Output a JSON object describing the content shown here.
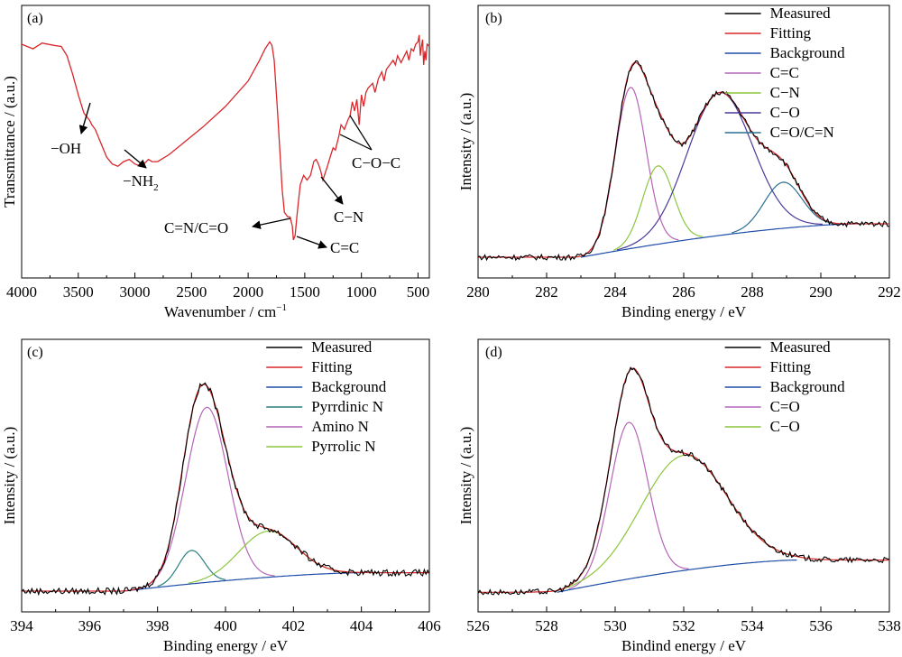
{
  "chart_data": [
    {
      "panel": "(a)",
      "type": "line",
      "xlabel": "Wavenumber / cm",
      "xlabel_sup": "−1",
      "ylabel": "Transmittance / (a.u.)",
      "xlim": [
        4000,
        400
      ],
      "xticks": [
        4000,
        3500,
        3000,
        2500,
        2000,
        1500,
        1000,
        500
      ],
      "ylim": [
        0,
        1
      ],
      "series": [
        {
          "color": "#d9262b",
          "x": [
            4000,
            3900,
            3820,
            3720,
            3650,
            3600,
            3550,
            3500,
            3450,
            3400,
            3380,
            3350,
            3300,
            3250,
            3200,
            3150,
            3100,
            3050,
            3000,
            2950,
            2920,
            2880,
            2850,
            2800,
            2700,
            2600,
            2400,
            2200,
            2000,
            1900,
            1850,
            1810,
            1790,
            1770,
            1740,
            1700,
            1680,
            1650,
            1630,
            1610,
            1600,
            1585,
            1570,
            1560,
            1540,
            1510,
            1480,
            1450,
            1420,
            1400,
            1380,
            1360,
            1340,
            1300,
            1270,
            1250,
            1230,
            1200,
            1180,
            1150,
            1120,
            1100,
            1080,
            1060,
            1040,
            1020,
            1000,
            980,
            960,
            940,
            900,
            880,
            850,
            820,
            800,
            780,
            750,
            720,
            700,
            680,
            650,
            620,
            600,
            580,
            560,
            540,
            520,
            500,
            490,
            480,
            470,
            460,
            450,
            440,
            430,
            420,
            400
          ],
          "y": [
            0.95,
            0.93,
            0.955,
            0.945,
            0.94,
            0.9,
            0.82,
            0.73,
            0.65,
            0.62,
            0.6,
            0.58,
            0.52,
            0.46,
            0.43,
            0.42,
            0.44,
            0.45,
            0.43,
            0.42,
            0.43,
            0.45,
            0.44,
            0.44,
            0.47,
            0.51,
            0.59,
            0.68,
            0.79,
            0.88,
            0.93,
            0.96,
            0.945,
            0.88,
            0.65,
            0.32,
            0.22,
            0.2,
            0.2,
            0.16,
            0.1,
            0.12,
            0.2,
            0.25,
            0.34,
            0.38,
            0.36,
            0.38,
            0.44,
            0.45,
            0.43,
            0.4,
            0.36,
            0.42,
            0.47,
            0.5,
            0.49,
            0.55,
            0.6,
            0.58,
            0.62,
            0.64,
            0.7,
            0.66,
            0.71,
            0.6,
            0.73,
            0.68,
            0.74,
            0.76,
            0.78,
            0.74,
            0.8,
            0.83,
            0.79,
            0.84,
            0.86,
            0.88,
            0.86,
            0.9,
            0.87,
            0.9,
            0.92,
            0.88,
            0.93,
            0.92,
            0.95,
            0.96,
            0.99,
            0.9,
            0.94,
            0.97,
            0.86,
            0.92,
            0.88,
            0.95,
            0.94
          ]
        }
      ],
      "annotations": [
        {
          "text": "−OH"
        },
        {
          "text": "−NH",
          "sub": "2"
        },
        {
          "text": "C=N/C=O"
        },
        {
          "text": "C=C"
        },
        {
          "text": "C−N"
        },
        {
          "text": "C−O−C"
        }
      ]
    },
    {
      "panel": "(b)",
      "type": "line",
      "xlabel": "Binding energy / eV",
      "ylabel": "Intensity / (a.u.)",
      "xlim": [
        280,
        292
      ],
      "xticks": [
        280,
        282,
        284,
        286,
        288,
        290,
        292
      ],
      "ylim": [
        0,
        1
      ],
      "legend_position": "top-right",
      "background": {
        "x0": 283.0,
        "y0": 0.025,
        "x1": 291.0,
        "y1": 0.17,
        "curv": 0.5
      },
      "series": [
        {
          "name": "Measured",
          "color": "#000000",
          "kind": "measured",
          "noise": 0.012
        },
        {
          "name": "Fitting",
          "color": "#d9262b",
          "kind": "fitting"
        },
        {
          "name": "Background",
          "color": "#1f4ea8",
          "kind": "background"
        },
        {
          "name": "C=C",
          "color": "#b565b8",
          "kind": "peak",
          "center": 284.45,
          "height": 0.7,
          "width": 0.45
        },
        {
          "name": "C−N",
          "color": "#8cc63f",
          "kind": "peak",
          "center": 285.25,
          "height": 0.34,
          "width": 0.45
        },
        {
          "name": "C−O",
          "color": "#4b3a9a",
          "kind": "peak",
          "center": 287.05,
          "height": 0.62,
          "width": 0.95
        },
        {
          "name": "C=O/C=N",
          "color": "#2b6f8f",
          "kind": "peak",
          "center": 288.9,
          "height": 0.2,
          "width": 0.55
        }
      ]
    },
    {
      "panel": "(c)",
      "type": "line",
      "xlabel": "Binding energy / eV",
      "ylabel": "Intensity / (a.u.)",
      "xlim": [
        394,
        406
      ],
      "xticks": [
        394,
        396,
        398,
        400,
        402,
        404,
        406
      ],
      "ylim": [
        0,
        1
      ],
      "legend_position": "top-right",
      "background": {
        "x0": 397.0,
        "y0": 0.025,
        "x1": 404.0,
        "y1": 0.105,
        "curv": 0.5
      },
      "series": [
        {
          "name": "Measured",
          "color": "#000000",
          "kind": "measured",
          "noise": 0.014
        },
        {
          "name": "Fitting",
          "color": "#d9262b",
          "kind": "fitting"
        },
        {
          "name": "Background",
          "color": "#1f4ea8",
          "kind": "background"
        },
        {
          "name": "Pyrrdinic N",
          "color": "#2b7f7f",
          "kind": "peak",
          "center": 399.0,
          "height": 0.145,
          "width": 0.38
        },
        {
          "name": "Amino N",
          "color": "#b565b8",
          "kind": "peak",
          "center": 399.45,
          "height": 0.76,
          "width": 0.62
        },
        {
          "name": "Pyrrolic N",
          "color": "#8cc63f",
          "kind": "peak",
          "center": 401.25,
          "height": 0.2,
          "width": 0.85
        }
      ]
    },
    {
      "panel": "(d)",
      "type": "line",
      "xlabel": "Bindind energy / eV",
      "ylabel": "Intensity / (a.u.)",
      "xlim": [
        526,
        538
      ],
      "xticks": [
        526,
        528,
        530,
        532,
        534,
        536,
        538
      ],
      "ylim": [
        0,
        1
      ],
      "legend_position": "top-right",
      "background": {
        "x0": 528.3,
        "y0": 0.02,
        "x1": 535.3,
        "y1": 0.16,
        "curv": 0.5
      },
      "series": [
        {
          "name": "Measured",
          "color": "#000000",
          "kind": "measured",
          "noise": 0.012
        },
        {
          "name": "Fitting",
          "color": "#d9262b",
          "kind": "fitting"
        },
        {
          "name": "Background",
          "color": "#1f4ea8",
          "kind": "background"
        },
        {
          "name": "C=O",
          "color": "#b565b8",
          "kind": "peak",
          "center": 530.4,
          "height": 0.68,
          "width": 0.55
        },
        {
          "name": "C−O",
          "color": "#8cc63f",
          "kind": "peak",
          "center": 532.0,
          "height": 0.5,
          "width": 1.25
        }
      ]
    }
  ]
}
